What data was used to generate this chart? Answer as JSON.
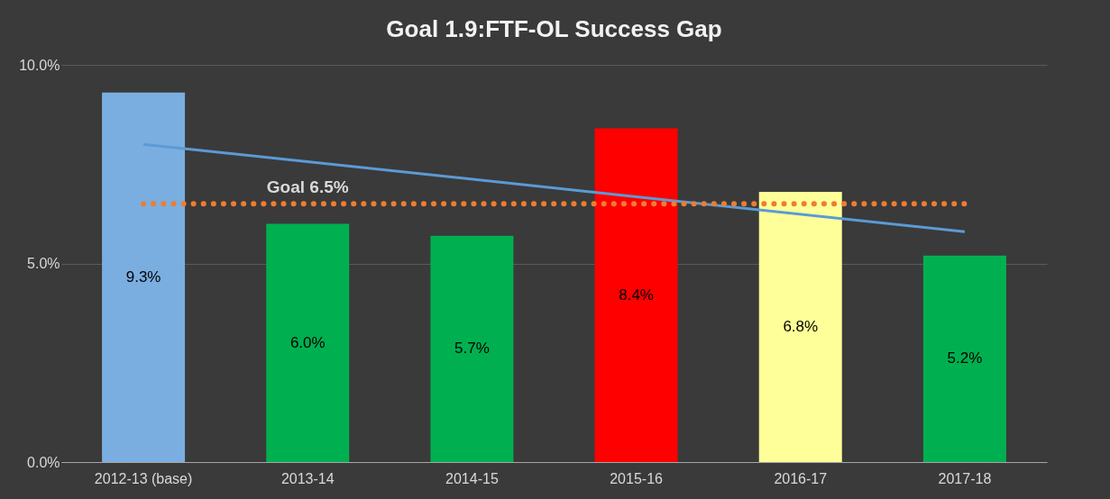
{
  "chart_data": {
    "type": "bar",
    "title": "Goal 1.9:FTF-OL Success Gap",
    "categories": [
      "2012-13 (base)",
      "2013-14",
      "2014-15",
      "2015-16",
      "2016-17",
      "2017-18"
    ],
    "series": [
      {
        "values": [
          9.3,
          6.0,
          5.7,
          8.4,
          6.8,
          5.2
        ],
        "colors": [
          "#7aaee0",
          "#00b050",
          "#00b050",
          "#ff0000",
          "#ffff99",
          "#00b050"
        ],
        "value_labels": [
          "9.3%",
          "6.0%",
          "5.7%",
          "8.4%",
          "6.8%",
          "5.2%"
        ]
      },
      {
        "type": "line",
        "x": [
          "2012-13 (base)",
          "2017-18"
        ],
        "values": [
          8.0,
          5.8
        ],
        "color": "#5b9bd5"
      }
    ],
    "ylim": [
      0,
      10
    ],
    "yticks": [
      {
        "value": 0,
        "label": "0.0%"
      },
      {
        "value": 5,
        "label": "5.0%"
      },
      {
        "value": 10,
        "label": "10.0%"
      }
    ],
    "ref_lines": [
      {
        "axis": "y",
        "value": 6.5,
        "label": "Goal 6.5%",
        "color": "#ed7d31",
        "line_style": "dotted"
      }
    ],
    "grid": "y"
  }
}
